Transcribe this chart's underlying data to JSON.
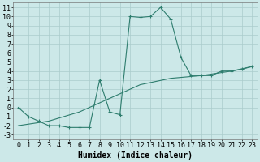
{
  "xlabel": "Humidex (Indice chaleur)",
  "xlim": [
    -0.5,
    23.5
  ],
  "ylim": [
    -3.5,
    11.5
  ],
  "xticks": [
    0,
    1,
    2,
    3,
    4,
    5,
    6,
    7,
    8,
    9,
    10,
    11,
    12,
    13,
    14,
    15,
    16,
    17,
    18,
    19,
    20,
    21,
    22,
    23
  ],
  "yticks": [
    -3,
    -2,
    -1,
    0,
    1,
    2,
    3,
    4,
    5,
    6,
    7,
    8,
    9,
    10,
    11
  ],
  "curve1_x": [
    0,
    1,
    2,
    3,
    4,
    5,
    6,
    7,
    8,
    9,
    10,
    11,
    12,
    13,
    14,
    15,
    16,
    17,
    18,
    19,
    20,
    21,
    22,
    23
  ],
  "curve1_y": [
    0,
    -1,
    -1.5,
    -2,
    -2,
    -2.2,
    -2.2,
    -2.2,
    3,
    -0.5,
    -0.8,
    10,
    9.9,
    10,
    11,
    9.7,
    5.5,
    3.5,
    3.5,
    3.5,
    4,
    4,
    4.2,
    4.5
  ],
  "curve2_x": [
    0,
    3,
    6,
    9,
    12,
    15,
    18,
    21,
    23
  ],
  "curve2_y": [
    -2,
    -1.5,
    -0.5,
    1,
    2.5,
    3.2,
    3.5,
    4,
    4.5
  ],
  "line_color": "#2e7d6e",
  "bg_color": "#cce8e8",
  "grid_color": "#aacccc",
  "label_fontsize": 7,
  "tick_fontsize": 6
}
